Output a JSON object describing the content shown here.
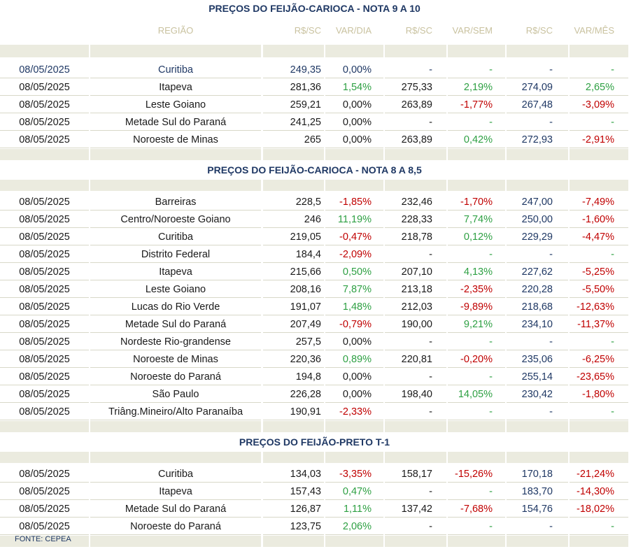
{
  "headers": {
    "region": "REGIÃO",
    "rs_sc_1": "R$/SC",
    "var_dia": "VAR/DIA",
    "rs_sc_2": "R$/SC",
    "var_sem": "VAR/SEM",
    "rs_sc_3": "R$/SC",
    "var_mes": "VAR/MÊS"
  },
  "sections": [
    {
      "title": "PREÇOS DO FEIJÃO-CARIOCA - NOTA 9 A 10",
      "show_headers": true,
      "rows": [
        {
          "date": "08/05/2025",
          "region": "Curitiba",
          "p1": "249,35",
          "vd": "0,00%",
          "p2": "-",
          "vs": "-",
          "p3": "-",
          "vm": "-"
        },
        {
          "date": "08/05/2025",
          "region": "Itapeva",
          "p1": "281,36",
          "vd": "1,54%",
          "p2": "275,33",
          "vs": "2,19%",
          "p3": "274,09",
          "vm": "2,65%"
        },
        {
          "date": "08/05/2025",
          "region": "Leste Goiano",
          "p1": "259,21",
          "vd": "0,00%",
          "p2": "263,89",
          "vs": "-1,77%",
          "p3": "267,48",
          "vm": "-3,09%"
        },
        {
          "date": "08/05/2025",
          "region": "Metade Sul do Paraná",
          "p1": "241,25",
          "vd": "0,00%",
          "p2": "-",
          "vs": "-",
          "p3": "-",
          "vm": "-"
        },
        {
          "date": "08/05/2025",
          "region": "Noroeste de Minas",
          "p1": "265",
          "vd": "0,00%",
          "p2": "263,89",
          "vs": "0,42%",
          "p3": "272,93",
          "vm": "-2,91%"
        }
      ]
    },
    {
      "title": "PREÇOS DO FEIJÃO-CARIOCA - NOTA 8 A 8,5",
      "show_headers": false,
      "rows": [
        {
          "date": "08/05/2025",
          "region": "Barreiras",
          "p1": "228,5",
          "vd": "-1,85%",
          "p2": "232,46",
          "vs": "-1,70%",
          "p3": "247,00",
          "vm": "-7,49%"
        },
        {
          "date": "08/05/2025",
          "region": "Centro/Noroeste Goiano",
          "p1": "246",
          "vd": "11,19%",
          "p2": "228,33",
          "vs": "7,74%",
          "p3": "250,00",
          "vm": "-1,60%"
        },
        {
          "date": "08/05/2025",
          "region": "Curitiba",
          "p1": "219,05",
          "vd": "-0,47%",
          "p2": "218,78",
          "vs": "0,12%",
          "p3": "229,29",
          "vm": "-4,47%"
        },
        {
          "date": "08/05/2025",
          "region": "Distrito Federal",
          "p1": "184,4",
          "vd": "-2,09%",
          "p2": "-",
          "vs": "-",
          "p3": "-",
          "vm": "-"
        },
        {
          "date": "08/05/2025",
          "region": "Itapeva",
          "p1": "215,66",
          "vd": "0,50%",
          "p2": "207,10",
          "vs": "4,13%",
          "p3": "227,62",
          "vm": "-5,25%"
        },
        {
          "date": "08/05/2025",
          "region": "Leste Goiano",
          "p1": "208,16",
          "vd": "7,87%",
          "p2": "213,18",
          "vs": "-2,35%",
          "p3": "220,28",
          "vm": "-5,50%"
        },
        {
          "date": "08/05/2025",
          "region": "Lucas do Rio Verde",
          "p1": "191,07",
          "vd": "1,48%",
          "p2": "212,03",
          "vs": "-9,89%",
          "p3": "218,68",
          "vm": "-12,63%"
        },
        {
          "date": "08/05/2025",
          "region": "Metade Sul do Paraná",
          "p1": "207,49",
          "vd": "-0,79%",
          "p2": "190,00",
          "vs": "9,21%",
          "p3": "234,10",
          "vm": "-11,37%"
        },
        {
          "date": "08/05/2025",
          "region": "Nordeste Rio-grandense",
          "p1": "257,5",
          "vd": "0,00%",
          "p2": "-",
          "vs": "-",
          "p3": "-",
          "vm": "-"
        },
        {
          "date": "08/05/2025",
          "region": "Noroeste de Minas",
          "p1": "220,36",
          "vd": "0,89%",
          "p2": "220,81",
          "vs": "-0,20%",
          "p3": "235,06",
          "vm": "-6,25%"
        },
        {
          "date": "08/05/2025",
          "region": "Noroeste do Paraná",
          "p1": "194,8",
          "vd": "0,00%",
          "p2": "-",
          "vs": "-",
          "p3": "255,14",
          "vm": "-23,65%"
        },
        {
          "date": "08/05/2025",
          "region": "São Paulo",
          "p1": "226,28",
          "vd": "0,00%",
          "p2": "198,40",
          "vs": "14,05%",
          "p3": "230,42",
          "vm": "-1,80%"
        },
        {
          "date": "08/05/2025",
          "region": "Triâng.Mineiro/Alto Paranaíba",
          "p1": "190,91",
          "vd": "-2,33%",
          "p2": "-",
          "vs": "-",
          "p3": "-",
          "vm": "-"
        }
      ]
    },
    {
      "title": "PREÇOS DO  FEIJÃO-PRETO  T-1",
      "show_headers": false,
      "rows": [
        {
          "date": "08/05/2025",
          "region": "Curitiba",
          "p1": "134,03",
          "vd": "-3,35%",
          "p2": "158,17",
          "vs": "-15,26%",
          "p3": "170,18",
          "vm": "-21,24%"
        },
        {
          "date": "08/05/2025",
          "region": "Itapeva",
          "p1": "157,43",
          "vd": "0,47%",
          "p2": "-",
          "vs": "-",
          "p3": "183,70",
          "vm": "-14,30%"
        },
        {
          "date": "08/05/2025",
          "region": "Metade Sul do Paraná",
          "p1": "126,87",
          "vd": "1,11%",
          "p2": "137,42",
          "vs": "-7,68%",
          "p3": "154,76",
          "vm": "-18,02%"
        },
        {
          "date": "08/05/2025",
          "region": "Noroeste do Paraná",
          "p1": "123,75",
          "vd": "2,06%",
          "p2": "-",
          "vs": "-",
          "p3": "-",
          "vm": "-"
        }
      ]
    }
  ],
  "source": "FONTE: CEPEA",
  "colors": {
    "title": "#1f3864",
    "header_text": "#c9c29f",
    "band": "#ebebdf",
    "positive": "#2ea043",
    "negative": "#c00000"
  }
}
